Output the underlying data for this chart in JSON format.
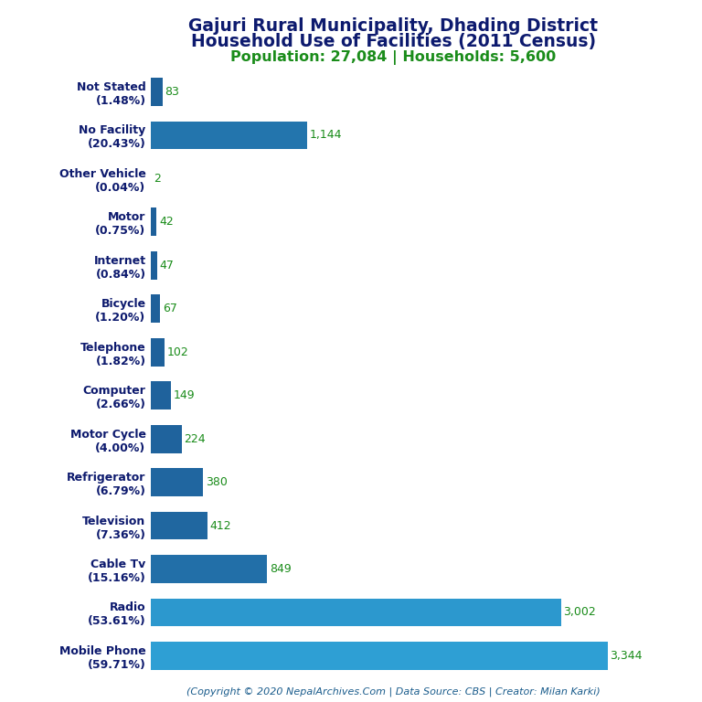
{
  "title_line1": "Gajuri Rural Municipality, Dhading District",
  "title_line2": "Household Use of Facilities (2011 Census)",
  "subtitle": "Population: 27,084 | Households: 5,600",
  "copyright": "(Copyright © 2020 NepalArchives.Com | Data Source: CBS | Creator: Milan Karki)",
  "categories": [
    "Not Stated\n(1.48%)",
    "No Facility\n(20.43%)",
    "Other Vehicle\n(0.04%)",
    "Motor\n(0.75%)",
    "Internet\n(0.84%)",
    "Bicycle\n(1.20%)",
    "Telephone\n(1.82%)",
    "Computer\n(2.66%)",
    "Motor Cycle\n(4.00%)",
    "Refrigerator\n(6.79%)",
    "Television\n(7.36%)",
    "Cable Tv\n(15.16%)",
    "Radio\n(53.61%)",
    "Mobile Phone\n(59.71%)"
  ],
  "values": [
    83,
    1144,
    2,
    42,
    47,
    67,
    102,
    149,
    224,
    380,
    412,
    849,
    3002,
    3344
  ],
  "bar_color_low": "#1e5f99",
  "bar_color_high": "#2e9fd4",
  "title_color": "#0d1a6e",
  "subtitle_color": "#1a8c1a",
  "value_color": "#1a8c1a",
  "copyright_color": "#1a5c8c",
  "background_color": "#ffffff",
  "xlim": [
    0,
    3700
  ],
  "title_fontsize": 13.5,
  "subtitle_fontsize": 11.5,
  "label_fontsize": 9,
  "value_fontsize": 9,
  "copyright_fontsize": 8
}
